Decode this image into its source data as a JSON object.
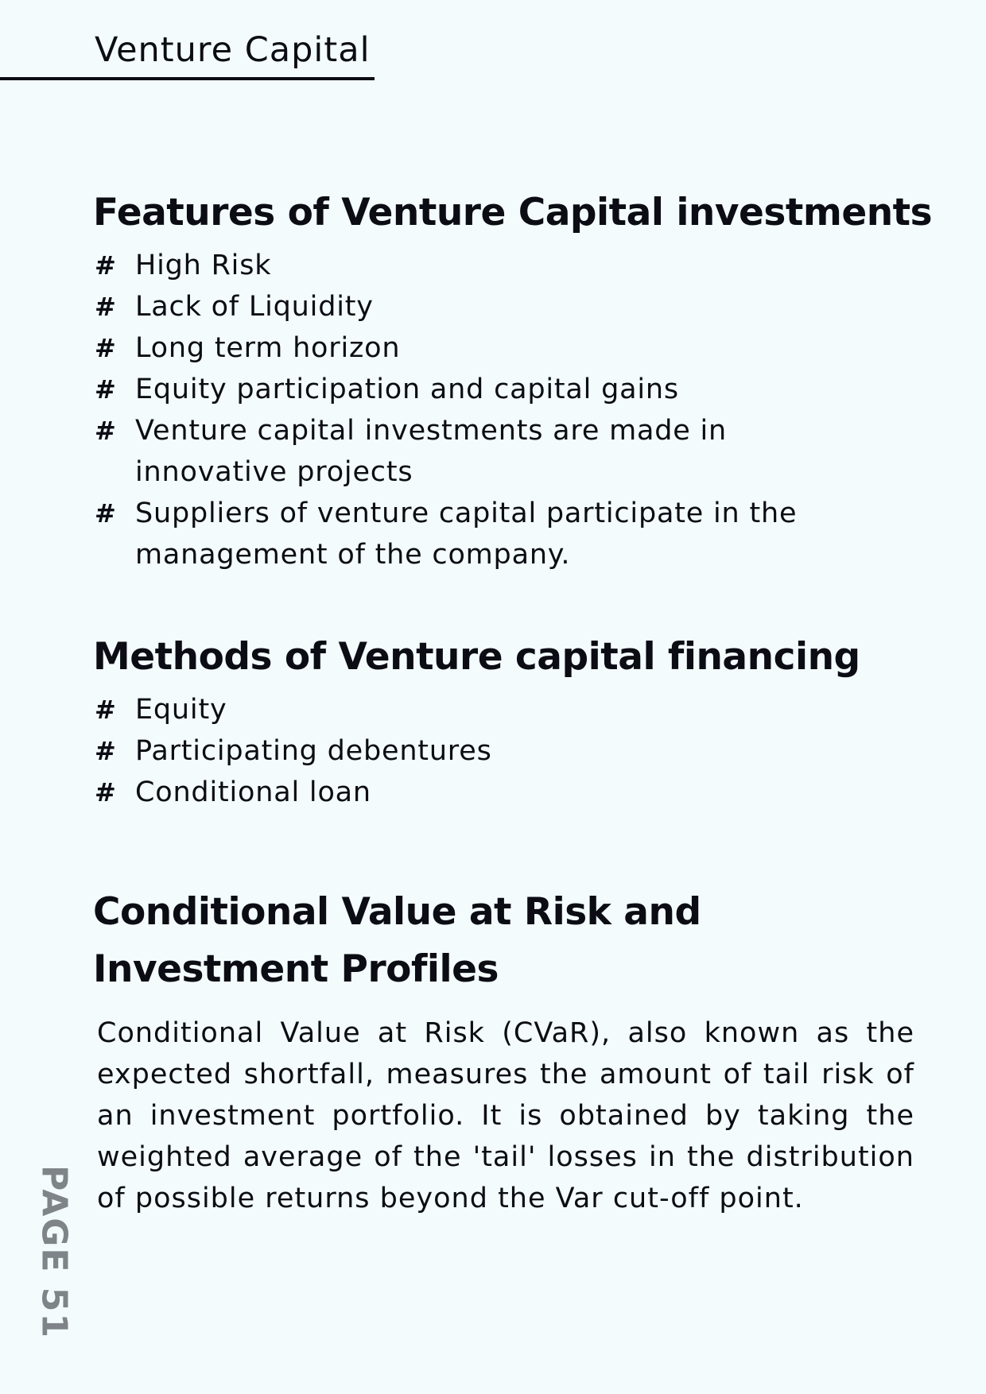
{
  "header": {
    "title": "Venture Capital"
  },
  "features": {
    "heading": "Features of Venture Capital investments",
    "bullet_symbol": "#",
    "items": [
      "High Risk",
      "Lack of Liquidity",
      "Long term horizon",
      "Equity participation and capital gains",
      "Venture capital investments are made in innovative projects",
      "Suppliers of venture capital participate in the management of the company."
    ]
  },
  "methods": {
    "heading": "Methods of Venture capital financing",
    "bullet_symbol": "#",
    "items": [
      "Equity",
      "Participating debentures",
      "Conditional loan"
    ]
  },
  "cvar": {
    "heading": "Conditional Value at Risk and Investment Profiles",
    "body": "Conditional Value at Risk (CVaR), also known as the expected shortfall, measures the amount of tail risk of an investment portfolio. It is obtained by taking the weighted average of the 'tail' losses in the distribution of possible returns beyond the Var cut-off point."
  },
  "footer": {
    "page_label": "PAGE 51"
  }
}
